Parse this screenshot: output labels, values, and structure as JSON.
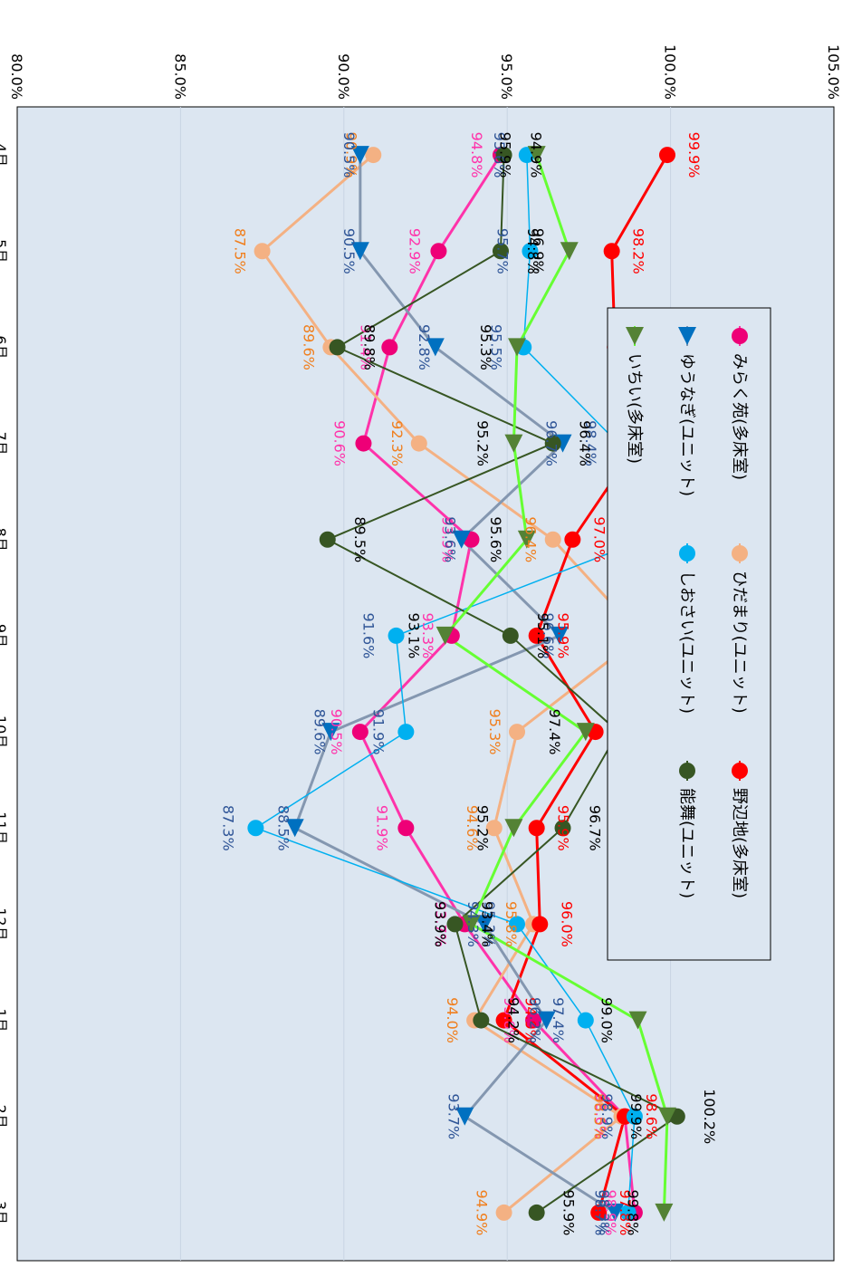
{
  "chart_data": {
    "type": "line",
    "orientation": "rotated-90-clockwise",
    "xlabel": "月",
    "ylabel": "",
    "categories": [
      "4月",
      "5月",
      "6月",
      "7月",
      "8月",
      "9月",
      "10月",
      "11月",
      "12月",
      "1月",
      "2月",
      "3月"
    ],
    "y_ticks": [
      "80.0%",
      "85.0%",
      "90.0%",
      "95.0%",
      "100.0%",
      "105.0%"
    ],
    "ylim": [
      80,
      105
    ],
    "grid": true,
    "legend_position": "right",
    "colors": {
      "plot_background": "#dce6f1"
    },
    "series": [
      {
        "name": "みらく苑(多床室)",
        "color": "#ff33aa",
        "label_color": "#ff33aa",
        "marker": "circle",
        "marker_color": "#ee0077",
        "line_width": 3,
        "values": [
          94.8,
          92.9,
          91.4,
          90.6,
          93.9,
          93.3,
          90.5,
          91.9,
          93.7,
          95.8,
          98.6,
          98.9
        ]
      },
      {
        "name": "ひだまり(ユニット)",
        "color": "#f4b183",
        "label_color": "#f07f1e",
        "marker": "circle",
        "marker_color": "#f4b183",
        "line_width": 3,
        "values": [
          90.9,
          87.5,
          89.6,
          92.3,
          96.4,
          99.1,
          95.3,
          94.6,
          95.8,
          94.0,
          98.5,
          94.9
        ]
      },
      {
        "name": "野辺地(多床室)",
        "color": "#ff0000",
        "label_color": "#ff0000",
        "marker": "circle",
        "marker_color": "#ff0000",
        "line_width": 3,
        "values": [
          99.9,
          98.2,
          98.3,
          99.0,
          97.0,
          95.9,
          97.7,
          95.9,
          96.0,
          94.9,
          98.6,
          97.8
        ]
      },
      {
        "name": "ゆうなぎ(ユニット)",
        "color": "#8497b0",
        "label_color": "#2f5597",
        "marker": "triangle",
        "marker_color": "#0070c0",
        "line_width": 3,
        "values": [
          90.5,
          90.5,
          92.8,
          96.7,
          93.6,
          96.6,
          89.6,
          88.5,
          94.3,
          96.2,
          93.7,
          98.3
        ]
      },
      {
        "name": "しおさい(ユニット)",
        "color": "#00b0f0",
        "label_color": "#2f5597",
        "marker": "circle",
        "marker_color": "#00b0f0",
        "line_width": 1.5,
        "values": [
          95.6,
          95.7,
          95.5,
          98.4,
          99.2,
          91.6,
          91.9,
          87.3,
          95.3,
          97.4,
          98.9,
          98.7
        ]
      },
      {
        "name": "能舞(ユニット)",
        "color": "#375623",
        "label_color": "#000000",
        "marker": "circle",
        "marker_color": "#375623",
        "line_width": 2,
        "values": [
          94.9,
          94.8,
          89.8,
          96.4,
          89.5,
          95.1,
          98.4,
          96.7,
          93.4,
          94.2,
          100.2,
          95.9
        ]
      },
      {
        "name": "いちい(多床室)",
        "color": "#66ff33",
        "label_color": "#000000",
        "marker": "triangle",
        "marker_color": "#548235",
        "line_width": 3,
        "values": [
          95.9,
          96.9,
          95.3,
          95.2,
          95.6,
          93.1,
          97.4,
          95.2,
          93.9,
          99.0,
          99.9,
          99.8
        ]
      }
    ]
  }
}
